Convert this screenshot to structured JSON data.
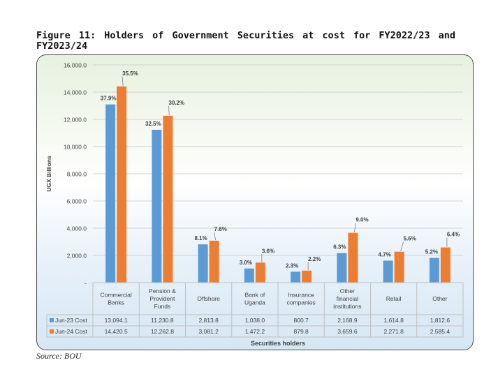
{
  "figure": {
    "title": "Figure 11: Holders of Government Securities at cost for FY2022/23 and FY2023/24",
    "source": "Source: BOU"
  },
  "chart_data": {
    "type": "bar",
    "title": "",
    "xlabel": "Securities holders",
    "ylabel": "UGX Billions",
    "ylim": [
      0,
      16000
    ],
    "yticks": [
      0,
      2000,
      4000,
      6000,
      8000,
      10000,
      12000,
      14000,
      16000
    ],
    "ytick_labels": [
      "-",
      "2,000.0",
      "4,000.0",
      "6,000.0",
      "8,000.0",
      "10,000.0",
      "12,000.0",
      "14,000.0",
      "16,000.0"
    ],
    "grid": true,
    "legend": "data table",
    "categories": [
      [
        "Commercial",
        "Banks"
      ],
      [
        "Pension &",
        "Provident",
        "Funds"
      ],
      [
        "Offshore"
      ],
      [
        "Bank of",
        "Uganda"
      ],
      [
        "Insurance",
        "companies"
      ],
      [
        "Other",
        "financial",
        "institutions"
      ],
      [
        "Retail"
      ],
      [
        "Other"
      ]
    ],
    "series": [
      {
        "name": "Jun-23 Cost",
        "color": "#5b9bd5",
        "values": [
          13094.1,
          11230.8,
          2813.8,
          1038.0,
          800.7,
          2168.9,
          1614.8,
          1812.6
        ],
        "value_labels": [
          "13,094.1",
          "11,230.8",
          "2,813.8",
          "1,038.0",
          "800.7",
          "2,168.9",
          "1,614.8",
          "1,812.6"
        ],
        "share_labels": [
          "37.9%",
          "32.5%",
          "8.1%",
          "3.0%",
          "2.3%",
          "6.3%",
          "4.7%",
          "5.2%"
        ]
      },
      {
        "name": "Jun-24 Cost",
        "color": "#ed7d31",
        "values": [
          14420.5,
          12262.8,
          3081.2,
          1472.2,
          879.8,
          3659.6,
          2271.8,
          2585.4
        ],
        "value_labels": [
          "14,420.5",
          "12,262.8",
          "3,081.2",
          "1,472.2",
          "879.8",
          "3,659.6",
          "2,271.8",
          "2,585.4"
        ],
        "share_labels": [
          "35.5%",
          "30.2%",
          "7.6%",
          "3.6%",
          "2.2%",
          "9.0%",
          "5.6%",
          "6.4%"
        ]
      }
    ]
  }
}
